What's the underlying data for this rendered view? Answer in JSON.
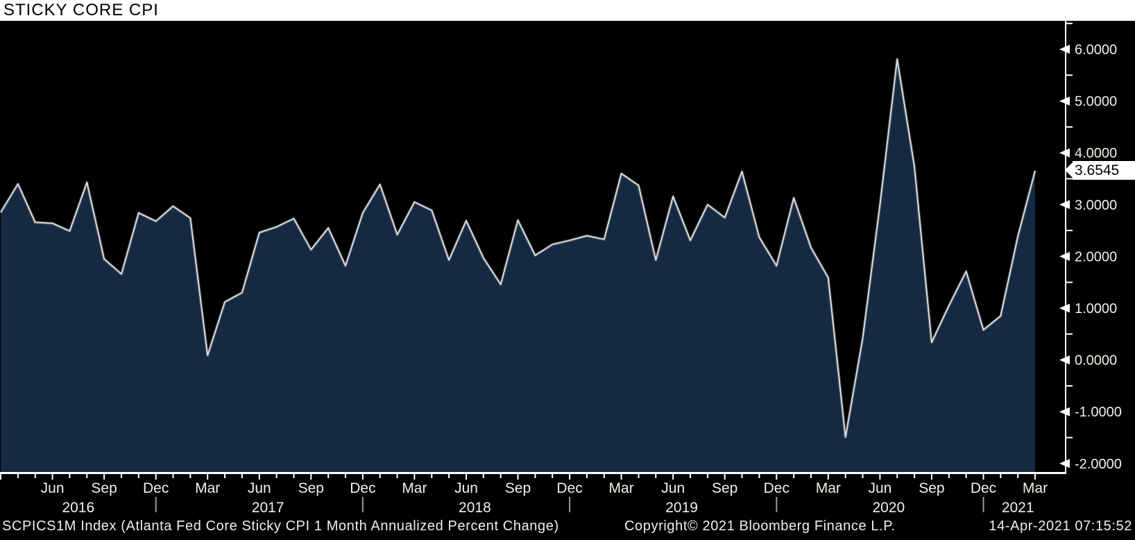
{
  "title_bar": {
    "title": "STICKY CORE CPI"
  },
  "chart_data": {
    "type": "area",
    "title": "STICKY CORE CPI",
    "xlabel": "",
    "ylabel": "",
    "grid": false,
    "legend_position": "none",
    "axis_range_note": "y axis approx -2.2 to 6.55, labels every 1.0 with minor ticks every 0.5; x axis monthly Mar 2016 - Mar 2021",
    "x_months": [
      "Mar 2016",
      "Apr 2016",
      "May 2016",
      "Jun 2016",
      "Jul 2016",
      "Aug 2016",
      "Sep 2016",
      "Oct 2016",
      "Nov 2016",
      "Dec 2016",
      "Jan 2017",
      "Feb 2017",
      "Mar 2017",
      "Apr 2017",
      "May 2017",
      "Jun 2017",
      "Jul 2017",
      "Aug 2017",
      "Sep 2017",
      "Oct 2017",
      "Nov 2017",
      "Dec 2017",
      "Jan 2018",
      "Feb 2018",
      "Mar 2018",
      "Apr 2018",
      "May 2018",
      "Jun 2018",
      "Jul 2018",
      "Aug 2018",
      "Sep 2018",
      "Oct 2018",
      "Nov 2018",
      "Dec 2018",
      "Jan 2019",
      "Feb 2019",
      "Mar 2019",
      "Apr 2019",
      "May 2019",
      "Jun 2019",
      "Jul 2019",
      "Aug 2019",
      "Sep 2019",
      "Oct 2019",
      "Nov 2019",
      "Dec 2019",
      "Jan 2020",
      "Feb 2020",
      "Mar 2020",
      "Apr 2020",
      "May 2020",
      "Jun 2020",
      "Jul 2020",
      "Aug 2020",
      "Sep 2020",
      "Oct 2020",
      "Nov 2020",
      "Dec 2020",
      "Jan 2021",
      "Feb 2021",
      "Mar 2021"
    ],
    "series": [
      {
        "name": "SCPICS1M Index",
        "values": [
          2.85,
          3.4,
          2.66,
          2.64,
          2.49,
          3.43,
          1.95,
          1.66,
          2.84,
          2.68,
          2.97,
          2.74,
          0.09,
          1.12,
          1.3,
          2.46,
          2.57,
          2.73,
          2.13,
          2.55,
          1.82,
          2.84,
          3.39,
          2.42,
          3.05,
          2.89,
          1.93,
          2.69,
          1.97,
          1.46,
          2.7,
          2.02,
          2.23,
          2.31,
          2.4,
          2.33,
          3.6,
          3.37,
          1.93,
          3.16,
          2.31,
          3.0,
          2.75,
          3.64,
          2.37,
          1.82,
          3.13,
          2.17,
          1.59,
          -1.49,
          0.42,
          3.0,
          5.81,
          3.73,
          0.34,
          1.05,
          1.71,
          0.58,
          0.85,
          2.39,
          3.6545
        ]
      }
    ],
    "ylim": [
      -2.18,
      6.55
    ],
    "y_major_ticks": [
      {
        "value": 6,
        "label": "6.0000"
      },
      {
        "value": 5,
        "label": "5.0000"
      },
      {
        "value": 4,
        "label": "4.0000"
      },
      {
        "value": 3,
        "label": "3.0000"
      },
      {
        "value": 2,
        "label": "2.0000"
      },
      {
        "value": 1,
        "label": "1.0000"
      },
      {
        "value": 0,
        "label": "0.0000"
      },
      {
        "value": -1,
        "label": "-1.0000"
      },
      {
        "value": -2,
        "label": "-2.0000"
      }
    ],
    "y_minor_ticks": [
      6.5,
      5.5,
      4.5,
      3.5,
      2.5,
      1.5,
      0.5,
      -0.5,
      -1.5
    ],
    "x_quarter_ticks": [
      {
        "m": 3,
        "label": "Jun"
      },
      {
        "m": 6,
        "label": "Sep"
      },
      {
        "m": 9,
        "label": "Dec"
      },
      {
        "m": 12,
        "label": "Mar"
      },
      {
        "m": 15,
        "label": "Jun"
      },
      {
        "m": 18,
        "label": "Sep"
      },
      {
        "m": 21,
        "label": "Dec"
      },
      {
        "m": 24,
        "label": "Mar"
      },
      {
        "m": 27,
        "label": "Jun"
      },
      {
        "m": 30,
        "label": "Sep"
      },
      {
        "m": 33,
        "label": "Dec"
      },
      {
        "m": 36,
        "label": "Mar"
      },
      {
        "m": 39,
        "label": "Jun"
      },
      {
        "m": 42,
        "label": "Sep"
      },
      {
        "m": 45,
        "label": "Dec"
      },
      {
        "m": 48,
        "label": "Mar"
      },
      {
        "m": 51,
        "label": "Jun"
      },
      {
        "m": 54,
        "label": "Sep"
      },
      {
        "m": 57,
        "label": "Dec"
      },
      {
        "m": 60,
        "label": "Mar"
      }
    ],
    "year_labels": [
      {
        "label": "2016",
        "from_m": 0,
        "to_m": 9
      },
      {
        "label": "2017",
        "from_m": 10,
        "to_m": 21
      },
      {
        "label": "2018",
        "from_m": 22,
        "to_m": 33
      },
      {
        "label": "2019",
        "from_m": 34,
        "to_m": 45
      },
      {
        "label": "2020",
        "from_m": 46,
        "to_m": 57
      },
      {
        "label": "2021",
        "from_m": 58,
        "to_m": 60
      }
    ],
    "year_separators_m": [
      9,
      21,
      33,
      45,
      57
    ],
    "last_value": {
      "label": "3.6545",
      "value": 3.6545
    }
  },
  "footer": {
    "left": "SCPICS1M Index (Atlanta Fed Core Sticky CPI 1 Month Annualized Percent Change)",
    "center": "Copyright© 2021 Bloomberg Finance L.P.",
    "right": "14-Apr-2021 07:15:52"
  },
  "colors": {
    "title_bar_bg": "#ffffff",
    "title_text": "#000000",
    "background": "#000000",
    "area_fill": "#152a42",
    "line": "#dcdcdc",
    "line_glow": "rgba(220,220,220,0.22)",
    "axis": "#ffffff",
    "tick_label": "#f4f0e6",
    "year_separator": "#9a9a9a",
    "badge_bg": "#ffffff",
    "badge_text": "#000000"
  }
}
